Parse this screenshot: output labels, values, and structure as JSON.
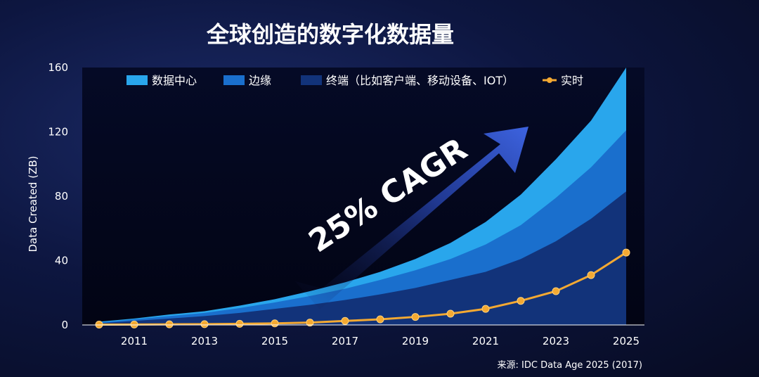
{
  "chart_data": {
    "type": "area",
    "title": "全球创造的数字化数据量",
    "ylabel": "Data Created (ZB)",
    "xlabel": "",
    "x": [
      2010,
      2011,
      2012,
      2013,
      2014,
      2015,
      2016,
      2017,
      2018,
      2019,
      2020,
      2021,
      2022,
      2023,
      2024,
      2025
    ],
    "x_ticks": [
      "2011",
      "2013",
      "2015",
      "2017",
      "2019",
      "2021",
      "2023",
      "2025"
    ],
    "y_ticks": [
      "0",
      "40",
      "80",
      "120",
      "160"
    ],
    "ylim": [
      0,
      160
    ],
    "xlim": [
      2010,
      2025
    ],
    "stacking": "stacked",
    "series": [
      {
        "name": "终端（比如客户端、移动设备、IOT）",
        "kind": "area",
        "color": "#12337a",
        "values": [
          1,
          2.5,
          4,
          5.5,
          7.5,
          10,
          12.5,
          15.5,
          19,
          23,
          28,
          33,
          41,
          52,
          66,
          83
        ]
      },
      {
        "name": "边缘",
        "kind": "area",
        "color": "#1a6fcd",
        "values": [
          0.5,
          1,
          1.5,
          2,
          3,
          4,
          5.5,
          7,
          9,
          11,
          13,
          17,
          21,
          27,
          32,
          38
        ]
      },
      {
        "name": "数据中心",
        "kind": "area",
        "color": "#29a6ec",
        "values": [
          0.5,
          0.5,
          1,
          1,
          1.5,
          2,
          3,
          4,
          5,
          7,
          10,
          14,
          19,
          24,
          29,
          39
        ]
      },
      {
        "name": "实时",
        "kind": "line",
        "color": "#f4a932",
        "values": [
          0.2,
          0.3,
          0.4,
          0.5,
          0.7,
          1,
          1.5,
          2.5,
          3.5,
          5,
          7,
          10,
          15,
          21,
          31,
          45
        ]
      }
    ],
    "annotation": "25% CAGR",
    "source": "来源: IDC Data Age 2025 (2017)",
    "legend_position": "top"
  }
}
